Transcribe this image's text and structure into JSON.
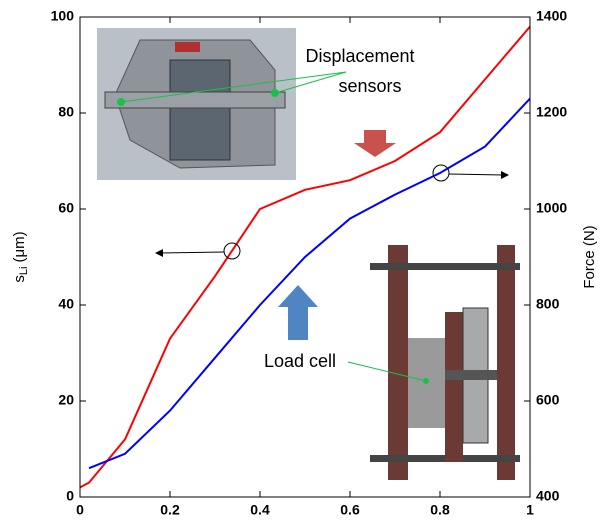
{
  "chart_data": {
    "type": "line",
    "x": [
      0,
      0.02,
      0.1,
      0.2,
      0.3,
      0.4,
      0.5,
      0.6,
      0.7,
      0.8,
      0.9,
      1
    ],
    "series": [
      {
        "color": "#ff0000",
        "values": [
          2,
          3,
          12,
          33,
          46,
          60,
          64,
          66,
          70,
          76,
          87,
          98
        ]
      },
      {
        "color": "#0000ff",
        "axis": "y2",
        "values": [
          null,
          460,
          490,
          580,
          690,
          800,
          900,
          980,
          1030,
          1075,
          1130,
          1230
        ]
      }
    ],
    "xlim": [
      0,
      1
    ],
    "xticks": [
      0,
      0.2,
      0.4,
      0.6,
      0.8,
      1
    ],
    "ylim": [
      0,
      100
    ],
    "yticks": [
      0,
      20,
      40,
      60,
      80,
      100
    ],
    "y2lim": [
      400,
      1400
    ],
    "y2ticks": [
      400,
      600,
      800,
      1000,
      1200,
      1400
    ],
    "ylabel": {
      "main": "s",
      "sub": "Li",
      "unit": "(μm)"
    },
    "y2label": "Force (N)",
    "annotations": [
      "Displacement",
      "sensors",
      "Load cell"
    ]
  }
}
